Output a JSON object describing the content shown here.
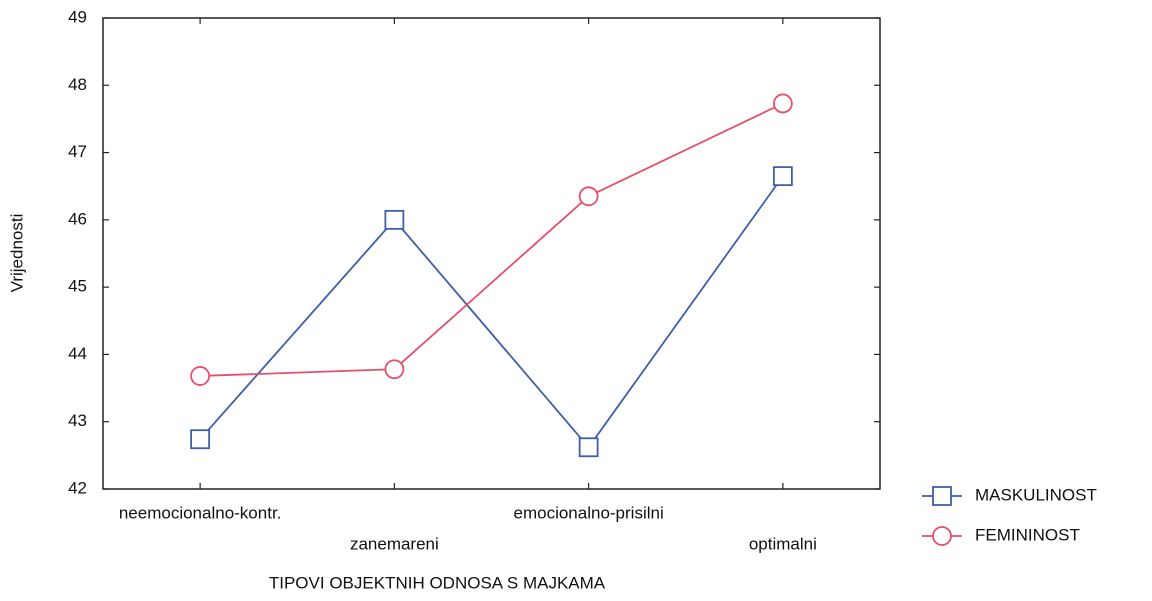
{
  "chart_data": {
    "type": "line",
    "ylabel": "Vrijednosti",
    "xlabel": "TIPOVI OBJEKTNIH ODNOSA S MAJKAMA",
    "categories": [
      "neemocionalno-kontr.",
      "zanemareni",
      "emocionalno-prisilni",
      "optimalni"
    ],
    "series": [
      {
        "name": "MASKULINOST",
        "color": "#3f5fa8",
        "marker": "square",
        "values": [
          42.74,
          46.0,
          42.62,
          46.65
        ]
      },
      {
        "name": "FEMININOST",
        "color": "#e5506b",
        "marker": "circle",
        "values": [
          43.68,
          43.78,
          46.35,
          47.73
        ]
      }
    ],
    "ylim": [
      42,
      49
    ],
    "yticks": [
      42,
      43,
      44,
      45,
      46,
      47,
      48,
      49
    ],
    "legend": "right"
  }
}
